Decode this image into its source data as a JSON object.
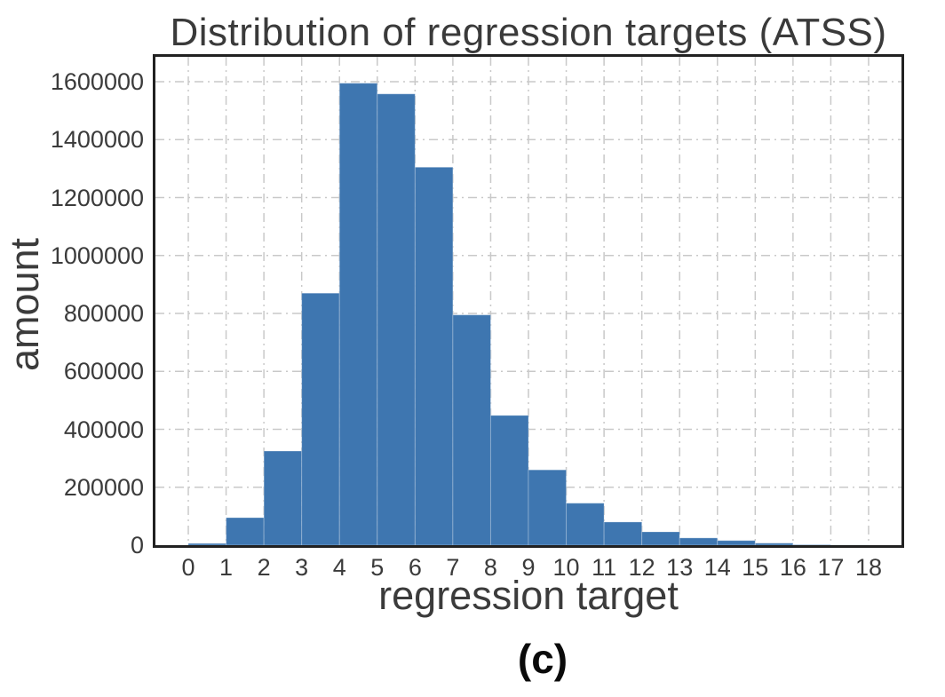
{
  "caption": "(c)",
  "chart_data": {
    "type": "bar",
    "subtype": "histogram",
    "title": "Distribution of regression targets (ATSS)",
    "xlabel": "regression target",
    "ylabel": "amount",
    "bin_edges": [
      0,
      1,
      2,
      3,
      4,
      5,
      6,
      7,
      8,
      9,
      10,
      11,
      12,
      13,
      14,
      15,
      16,
      17,
      18
    ],
    "values": [
      6000,
      95000,
      325000,
      870000,
      1595000,
      1558000,
      1305000,
      795000,
      448000,
      260000,
      145000,
      80000,
      46000,
      25000,
      16000,
      7000,
      1500,
      500
    ],
    "x_ticks": [
      0,
      1,
      2,
      3,
      4,
      5,
      6,
      7,
      8,
      9,
      10,
      11,
      12,
      13,
      14,
      15,
      16,
      17,
      18
    ],
    "y_ticks": [
      0,
      200000,
      400000,
      600000,
      800000,
      1000000,
      1200000,
      1400000,
      1600000
    ],
    "xlim": [
      -0.87,
      18.87
    ],
    "ylim": [
      0,
      1686000
    ],
    "grid": true,
    "grid_linestyle": "dash-dot",
    "legend": "none",
    "bar_color": "#3e76b0",
    "bar_edge_color": "rgba(255,255,255,0.28)",
    "grid_color": "#c9c9c9",
    "axis_border_color": "#212121",
    "text_color": "#3b3b3b",
    "background_color": "#ffffff"
  }
}
